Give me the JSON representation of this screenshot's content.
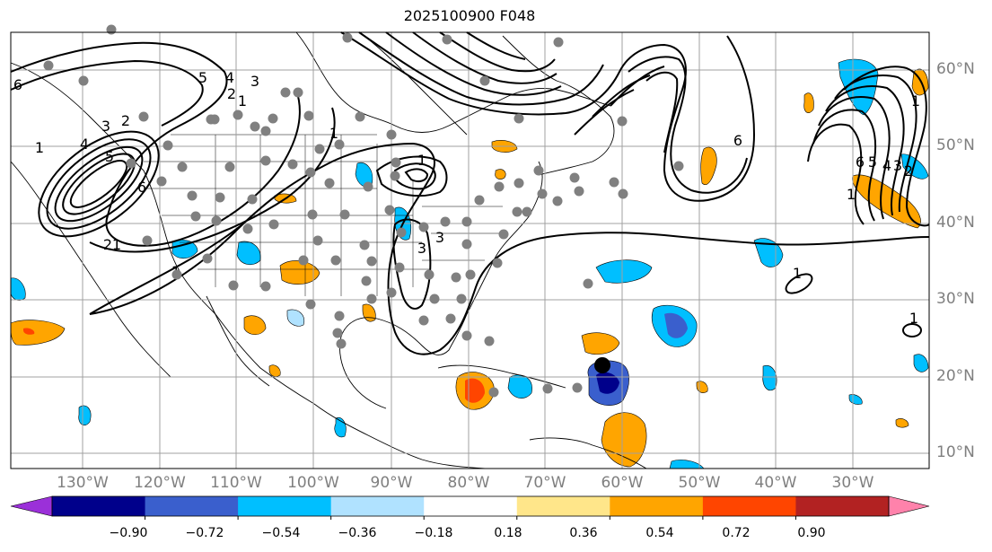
{
  "title": "2025100900 F048",
  "lon_labels": [
    "130°W",
    "120°W",
    "110°W",
    "100°W",
    "90°W",
    "80°W",
    "70°W",
    "60°W",
    "50°W",
    "40°W",
    "30°W"
  ],
  "lat_labels": [
    "60°N",
    "50°N",
    "40°N",
    "30°N",
    "20°N",
    "10°N"
  ],
  "colorbar": {
    "ticks": [
      "−0.90",
      "−0.72",
      "−0.54",
      "−0.36",
      "−0.18",
      "0.18",
      "0.36",
      "0.54",
      "0.72",
      "0.90"
    ],
    "colors": [
      "#9b30d9",
      "#00008b",
      "#3a5fcd",
      "#00bfff",
      "#b0e2ff",
      "#ffffff",
      "#ffe68a",
      "#ffa500",
      "#ff4500",
      "#b22222",
      "#ff82ab"
    ]
  },
  "contour_labels": [
    "1",
    "2",
    "3",
    "4",
    "5",
    "6",
    "1",
    "2",
    "3",
    "4",
    "5",
    "6",
    "1",
    "2",
    "1",
    "3",
    "1",
    "1",
    "1",
    "2",
    "3",
    "4",
    "5",
    "6",
    "1",
    "3",
    "6",
    "1",
    "1"
  ],
  "marker": "storm-center"
}
